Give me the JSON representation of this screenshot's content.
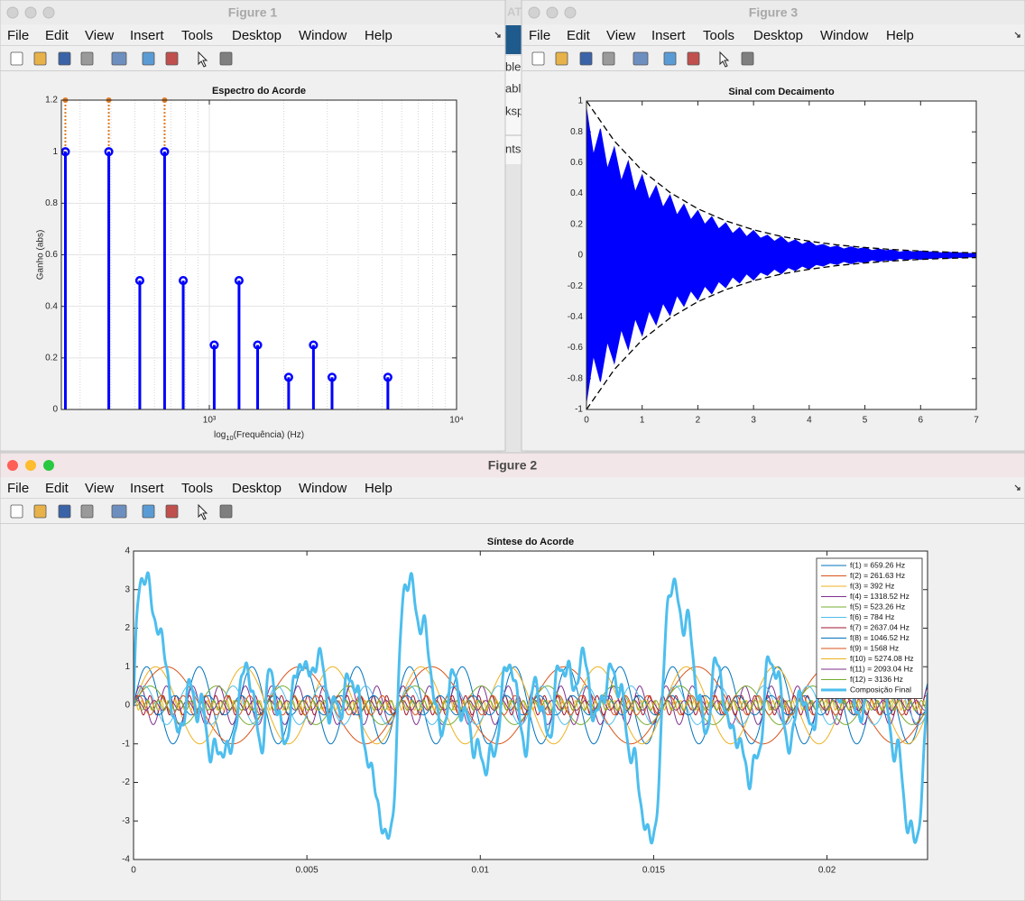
{
  "windows": [
    {
      "title": "Figure 1"
    },
    {
      "title": "Figure 3"
    },
    {
      "title": "Figure 2"
    }
  ],
  "menu": [
    "File",
    "Edit",
    "View",
    "Insert",
    "Tools",
    "Desktop",
    "Window",
    "Help"
  ],
  "background_fragments": [
    "AT",
    "ble",
    "abl",
    "ksp",
    "nts"
  ],
  "chart_data": [
    {
      "type": "stem",
      "title": "Espectro do Acorde",
      "xlabel": [
        "log",
        "10",
        "(Frequência) (Hz)"
      ],
      "ylabel": "Ganho (abs)",
      "xscale": "log",
      "xlim": [
        252,
        10000
      ],
      "ylim": [
        0,
        1.2
      ],
      "xticks": [
        {
          "value": 1000,
          "label": "10³"
        },
        {
          "value": 10000,
          "label": "10⁴"
        }
      ],
      "yticks": [
        0,
        0.2,
        0.4,
        0.6,
        0.8,
        1,
        1.2
      ],
      "grid": true,
      "minor_grid": true,
      "series": [
        {
          "color": "#e07b24",
          "line": "dotted",
          "x": [
            261.63,
            392,
            659.26
          ],
          "values": [
            1.2,
            1.2,
            1.2
          ]
        },
        {
          "color": "#0000ff",
          "x": [
            261.63,
            392,
            523.26,
            659.26,
            784,
            1046.52,
            1318.52,
            1568,
            2093.04,
            2637.04,
            3136,
            5274.08
          ],
          "values": [
            1,
            1,
            0.5,
            1,
            0.5,
            0.25,
            0.5,
            0.25,
            0.125,
            0.25,
            0.125,
            0.125
          ]
        }
      ]
    },
    {
      "type": "line",
      "title": "Sinal com Decaimento",
      "xlim": [
        0,
        7
      ],
      "ylim": [
        -1,
        1
      ],
      "xticks": [
        0,
        1,
        2,
        3,
        4,
        5,
        6,
        7
      ],
      "yticks": [
        -1,
        -0.8,
        -0.6,
        -0.4,
        -0.2,
        0,
        0.2,
        0.4,
        0.6,
        0.8,
        1
      ],
      "series": [
        {
          "color": "#0000ff",
          "fill": true,
          "x": [
            0,
            0.125,
            0.25,
            0.375,
            0.5,
            0.625,
            0.75,
            0.875,
            1,
            1.125,
            1.25,
            1.375,
            1.5,
            1.625,
            1.75,
            1.875,
            2,
            2.125,
            2.25,
            2.375,
            2.5,
            2.625,
            2.75,
            2.875,
            3,
            3.125,
            3.25,
            3.375,
            3.5,
            3.625,
            3.75,
            3.875,
            4,
            4.125,
            4.25,
            4.375,
            4.5,
            4.625,
            4.75,
            4.875,
            5,
            5.125,
            5.25,
            5.375,
            5.5,
            5.625,
            5.75,
            5.875,
            6,
            6.125,
            6.25,
            6.375,
            6.5,
            6.625,
            6.75,
            6.875,
            7
          ],
          "values": [
            0.95,
            0.65,
            0.82,
            0.56,
            0.7,
            0.48,
            0.61,
            0.41,
            0.52,
            0.36,
            0.45,
            0.31,
            0.39,
            0.26,
            0.33,
            0.23,
            0.29,
            0.2,
            0.25,
            0.17,
            0.21,
            0.14,
            0.18,
            0.12,
            0.16,
            0.11,
            0.13,
            0.09,
            0.12,
            0.08,
            0.1,
            0.07,
            0.09,
            0.06,
            0.07,
            0.05,
            0.06,
            0.04,
            0.055,
            0.04,
            0.05,
            0.03,
            0.04,
            0.03,
            0.035,
            0.02,
            0.03,
            0.02,
            0.026,
            0.02,
            0.023,
            0.015,
            0.02,
            0.013,
            0.016,
            0.011,
            0.014
          ]
        },
        {
          "color": "#0000ff",
          "fill": true,
          "x": [
            0,
            0.125,
            0.25,
            0.375,
            0.5,
            0.625,
            0.75,
            0.875,
            1,
            1.125,
            1.25,
            1.375,
            1.5,
            1.625,
            1.75,
            1.875,
            2,
            2.125,
            2.25,
            2.375,
            2.5,
            2.625,
            2.75,
            2.875,
            3,
            3.125,
            3.25,
            3.375,
            3.5,
            3.625,
            3.75,
            3.875,
            4,
            4.125,
            4.25,
            4.375,
            4.5,
            4.625,
            4.75,
            4.875,
            5,
            5.125,
            5.25,
            5.375,
            5.5,
            5.625,
            5.75,
            5.875,
            6,
            6.125,
            6.25,
            6.375,
            6.5,
            6.625,
            6.75,
            6.875,
            7
          ],
          "values": [
            -0.95,
            -0.65,
            -0.82,
            -0.56,
            -0.7,
            -0.48,
            -0.61,
            -0.41,
            -0.52,
            -0.36,
            -0.45,
            -0.31,
            -0.39,
            -0.26,
            -0.33,
            -0.23,
            -0.29,
            -0.2,
            -0.25,
            -0.17,
            -0.21,
            -0.14,
            -0.18,
            -0.12,
            -0.16,
            -0.11,
            -0.13,
            -0.09,
            -0.12,
            -0.08,
            -0.1,
            -0.07,
            -0.09,
            -0.06,
            -0.07,
            -0.05,
            -0.06,
            -0.04,
            -0.055,
            -0.04,
            -0.05,
            -0.03,
            -0.04,
            -0.03,
            -0.035,
            -0.02,
            -0.03,
            -0.02,
            -0.026,
            -0.02,
            -0.023,
            -0.015,
            -0.02,
            -0.013,
            -0.016,
            -0.011,
            -0.014
          ]
        },
        {
          "color": "#000000",
          "line": "dashed",
          "x": [
            0,
            0.5,
            1,
            1.5,
            2,
            2.5,
            3,
            3.5,
            4,
            4.5,
            5,
            5.5,
            6,
            6.5,
            7
          ],
          "values": [
            1,
            0.741,
            0.549,
            0.407,
            0.301,
            0.223,
            0.165,
            0.122,
            0.091,
            0.067,
            0.05,
            0.037,
            0.027,
            0.02,
            0.015
          ]
        },
        {
          "color": "#000000",
          "line": "dashed",
          "x": [
            0,
            0.5,
            1,
            1.5,
            2,
            2.5,
            3,
            3.5,
            4,
            4.5,
            5,
            5.5,
            6,
            6.5,
            7
          ],
          "values": [
            -1,
            -0.741,
            -0.549,
            -0.407,
            -0.301,
            -0.223,
            -0.165,
            -0.122,
            -0.091,
            -0.067,
            -0.05,
            -0.037,
            -0.027,
            -0.02,
            -0.015
          ]
        }
      ]
    },
    {
      "type": "sine",
      "title": "Síntese do Acorde",
      "xlim": [
        0,
        0.0229
      ],
      "ylim": [
        -4,
        4
      ],
      "xticks": [
        0,
        0.005,
        0.01,
        0.015,
        0.02
      ],
      "yticks": [
        -4,
        -3,
        -2,
        -1,
        0,
        1,
        2,
        3,
        4
      ],
      "legend": "northeast",
      "series": [
        {
          "name": "f(1) = 659.26 Hz",
          "color": "#0072bd",
          "frequency": 659.26,
          "amplitude": 1
        },
        {
          "name": "f(2) = 261.63 Hz",
          "color": "#d95319",
          "frequency": 261.63,
          "amplitude": 1
        },
        {
          "name": "f(3) = 392 Hz",
          "color": "#edb120",
          "frequency": 392,
          "amplitude": 1
        },
        {
          "name": "f(4) = 1318.52 Hz",
          "color": "#7e2f8e",
          "frequency": 1318.52,
          "amplitude": 0.5
        },
        {
          "name": "f(5) = 523.26 Hz",
          "color": "#77ac30",
          "frequency": 523.26,
          "amplitude": 0.5
        },
        {
          "name": "f(6) = 784 Hz",
          "color": "#4dbeee",
          "frequency": 784,
          "amplitude": 0.5
        },
        {
          "name": "f(7) = 2637.04 Hz",
          "color": "#a2142f",
          "frequency": 2637.04,
          "amplitude": 0.25
        },
        {
          "name": "f(8) = 1046.52 Hz",
          "color": "#0072bd",
          "frequency": 1046.52,
          "amplitude": 0.25
        },
        {
          "name": "f(9) = 1568 Hz",
          "color": "#d95319",
          "frequency": 1568,
          "amplitude": 0.25
        },
        {
          "name": "f(10) = 5274.08 Hz",
          "color": "#edb120",
          "frequency": 5274.08,
          "amplitude": 0.125
        },
        {
          "name": "f(11) = 2093.04 Hz",
          "color": "#7e2f8e",
          "frequency": 2093.04,
          "amplitude": 0.125
        },
        {
          "name": "f(12) = 3136 Hz",
          "color": "#77ac30",
          "frequency": 3136,
          "amplitude": 0.125
        },
        {
          "name": "Composição Final",
          "color": "#4dbeee",
          "width": 3
        }
      ]
    }
  ]
}
